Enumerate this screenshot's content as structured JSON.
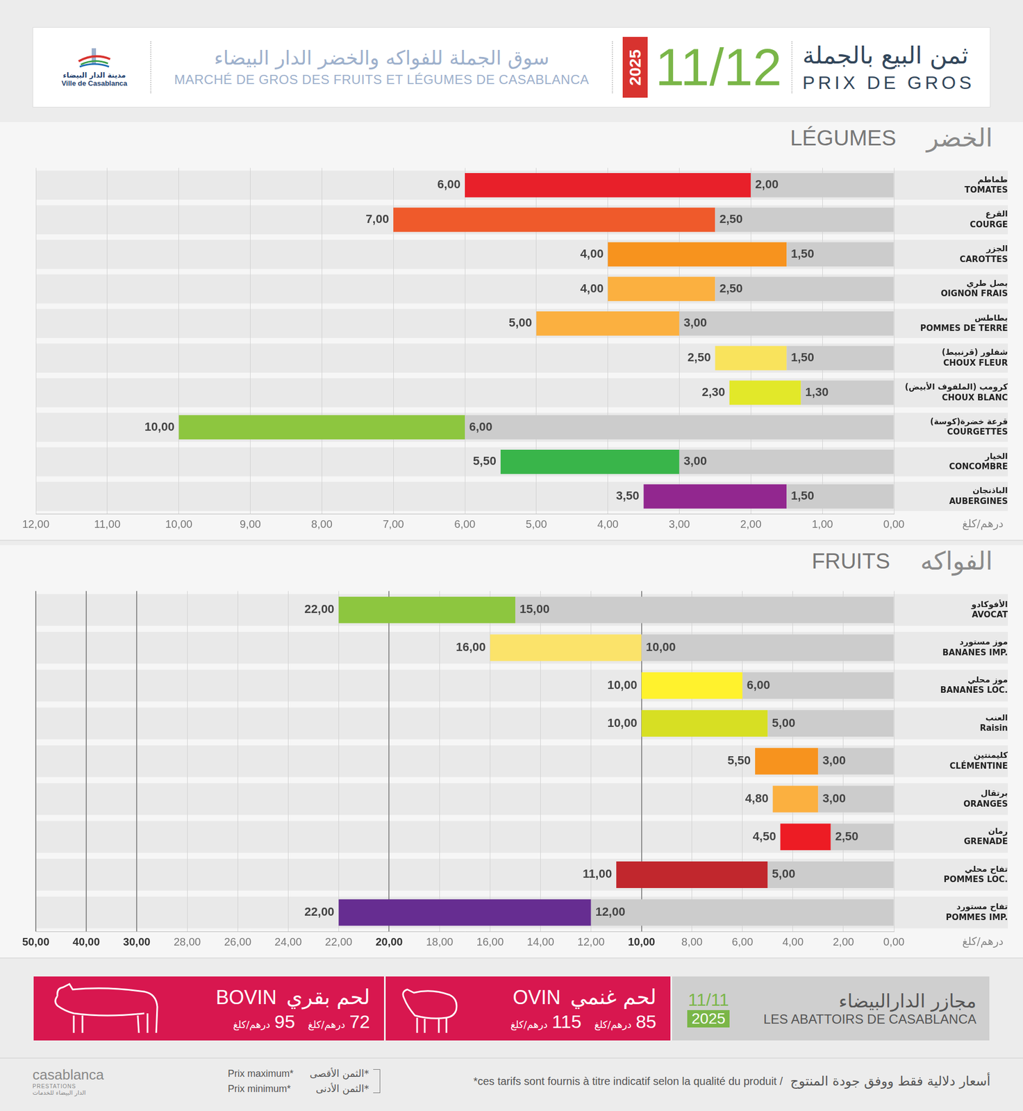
{
  "header": {
    "title_ar": "ثمن البيع بالجملة",
    "title_fr": "PRIX DE GROS",
    "date": "11/12",
    "year": "2025",
    "market_ar": "سوق الجملة للفواكه والخضر الدار البيضاء",
    "market_fr": "MARCHÉ DE GROS DES FRUITS ET LÉGUMES DE CASABLANCA",
    "logo_ar": "مدينة الدار البيضاء",
    "logo_fr": "Ville de Casablanca"
  },
  "chart_data": [
    {
      "type": "bar",
      "orientation": "horizontal",
      "title": "LÉGUMES",
      "title_ar": "الخضر",
      "categories": [
        "TOMATES",
        "COURGE",
        "CAROTTES",
        "OIGNON FRAIS",
        "POMMES DE TERRE",
        "CHOUX FLEUR",
        "CHOUX BLANC",
        "COURGETTES",
        "CONCOMBRE",
        "AUBERGINES"
      ],
      "categories_ar": [
        "طماطم",
        "القرع",
        "الجزر",
        "بصل طري",
        "بطاطس",
        "شفلور (قرنبيط)",
        "كرومب (الملفوف الأبيض)",
        "قرعة خضرة(كوسة)",
        "الخيار",
        "الباذنجان"
      ],
      "series": [
        {
          "name": "Prix minimum",
          "color": "#cccccc",
          "values": [
            2.0,
            2.5,
            1.5,
            2.5,
            3.0,
            1.5,
            1.3,
            6.0,
            3.0,
            1.5
          ],
          "value_labels": [
            "2,00",
            "2,50",
            "1,50",
            "2,50",
            "3,00",
            "1,50",
            "1,30",
            "6,00",
            "3,00",
            "1,50"
          ]
        },
        {
          "name": "Prix maximum",
          "colors": [
            "#e8202a",
            "#ef5a2b",
            "#f7931e",
            "#fbb040",
            "#fbb040",
            "#f9e35c",
            "#e2e829",
            "#8dc63f",
            "#39b54a",
            "#92278f"
          ],
          "values": [
            6.0,
            7.0,
            4.0,
            4.0,
            5.0,
            2.5,
            2.3,
            10.0,
            5.5,
            3.5
          ],
          "value_labels": [
            "6,00",
            "7,00",
            "4,00",
            "4,00",
            "5,00",
            "2,50",
            "2,30",
            "10,00",
            "5,50",
            "3,50"
          ]
        }
      ],
      "xlim": [
        12,
        0
      ],
      "xticks": [
        {
          "value": 0,
          "label": "0,00"
        },
        {
          "value": 1,
          "label": "1,00"
        },
        {
          "value": 2,
          "label": "2,00"
        },
        {
          "value": 3,
          "label": "3,00"
        },
        {
          "value": 4,
          "label": "4,00"
        },
        {
          "value": 5,
          "label": "5,00"
        },
        {
          "value": 6,
          "label": "6,00"
        },
        {
          "value": 7,
          "label": "7,00"
        },
        {
          "value": 8,
          "label": "8,00"
        },
        {
          "value": 9,
          "label": "9,00"
        },
        {
          "value": 10,
          "label": "10,00"
        },
        {
          "value": 11,
          "label": "11,00"
        },
        {
          "value": 12,
          "label": "12,00"
        }
      ],
      "xlabel": "درهم/كلغ",
      "grid": true,
      "data_labels": true
    },
    {
      "type": "bar",
      "orientation": "horizontal",
      "title": "FRUITS",
      "title_ar": "الفواكه",
      "categories": [
        "AVOCAT",
        "BANANES IMP.",
        "BANANES LOC.",
        "Raisin",
        "CLÉMENTINE",
        "ORANGES",
        "GRENADE",
        "POMMES LOC.",
        "POMMES IMP."
      ],
      "categories_ar": [
        "الأفوكادو",
        "موز مستورد",
        "موز محلي",
        "العنب",
        "كليمنتين",
        "برتقال",
        "رمان",
        "تفاح محلي",
        "تفاح مستورد"
      ],
      "series": [
        {
          "name": "Prix minimum",
          "color": "#cccccc",
          "values": [
            15.0,
            10.0,
            6.0,
            5.0,
            3.0,
            3.0,
            2.5,
            5.0,
            12.0
          ],
          "value_labels": [
            "15,00",
            "10,00",
            "6,00",
            "5,00",
            "3,00",
            "3,00",
            "2,50",
            "5,00",
            "12,00"
          ]
        },
        {
          "name": "Prix maximum",
          "colors": [
            "#8dc63f",
            "#fbe36a",
            "#fff22d",
            "#d7df23",
            "#f7931e",
            "#fbb040",
            "#ed1c24",
            "#c1272d",
            "#662d91"
          ],
          "values": [
            22.0,
            16.0,
            10.0,
            10.0,
            5.5,
            4.8,
            4.5,
            11.0,
            22.0
          ],
          "value_labels": [
            "22,00",
            "16,00",
            "10,00",
            "10,00",
            "5,50",
            "4,80",
            "4,50",
            "11,00",
            "22,00"
          ]
        }
      ],
      "xlim": [
        50,
        0
      ],
      "xticks": [
        {
          "value": 0,
          "label": "0,00"
        },
        {
          "value": 2,
          "label": "2,00"
        },
        {
          "value": 4,
          "label": "4,00"
        },
        {
          "value": 6,
          "label": "6,00"
        },
        {
          "value": 8,
          "label": "8,00"
        },
        {
          "value": 10,
          "label": "10,00"
        },
        {
          "value": 12,
          "label": "12,00"
        },
        {
          "value": 14,
          "label": "14,00"
        },
        {
          "value": 16,
          "label": "16,00"
        },
        {
          "value": 18,
          "label": "18,00"
        },
        {
          "value": 20,
          "label": "20,00"
        },
        {
          "value": 22,
          "label": "22,00"
        },
        {
          "value": 24,
          "label": "24,00"
        },
        {
          "value": 26,
          "label": "26,00"
        },
        {
          "value": 28,
          "label": "28,00"
        },
        {
          "value": 30,
          "label": "30,00"
        },
        {
          "value": 40,
          "label": "40,00"
        },
        {
          "value": 50,
          "label": "50,00"
        }
      ],
      "xlabel": "درهم/كلغ",
      "grid": true,
      "data_labels": true
    }
  ],
  "abattoirs": {
    "title_ar": "مجازر الدارالبيضاء",
    "title_fr": "LES ABATTOIRS DE CASABLANCA",
    "date": "11/11",
    "year": "2025",
    "items": [
      {
        "fr": "BOVIN",
        "ar": "لحم بقري",
        "prices": [
          95,
          72
        ],
        "unit": "درهم/كلغ"
      },
      {
        "fr": "OVIN",
        "ar": "لحم غنمي",
        "prices": [
          115,
          85
        ],
        "unit": "درهم/كلغ"
      }
    ]
  },
  "footer": {
    "logo": "casablanca",
    "logo_sub": "PRESTATIONS",
    "logo_ar": "الدار البيضاء للخدمات",
    "price_key": [
      {
        "fr": "Prix maximum*",
        "ar": "*الثمن الأقصى"
      },
      {
        "fr": "Prix minimum*",
        "ar": "*الثمن الأدنى"
      }
    ],
    "note_fr": "*ces tarifs sont fournis à titre indicatif selon la qualité du produit /",
    "note_ar": "أسعار دلالية فقط ووفق جودة المنتوج"
  }
}
